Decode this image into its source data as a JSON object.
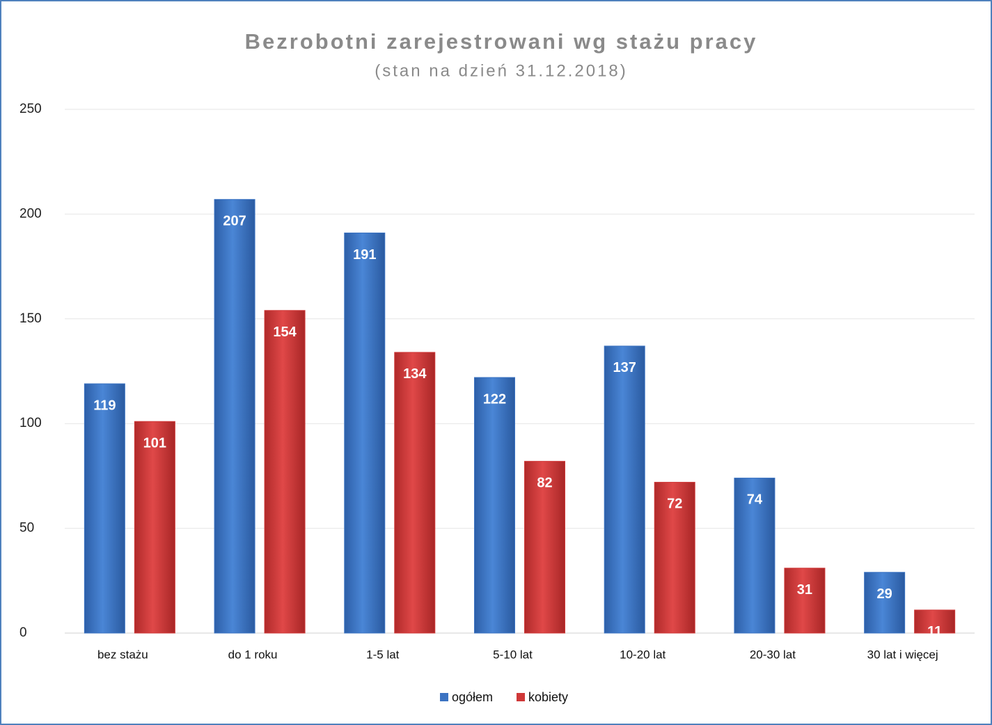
{
  "chart_data": {
    "type": "bar",
    "title": "Bezrobotni zarejestrowani wg stażu pracy",
    "subtitle": "(stan na dzień 31.12.2018)",
    "categories": [
      "bez stażu",
      "do 1 roku",
      "1-5 lat",
      "5-10 lat",
      "10-20 lat",
      "20-30 lat",
      "30 lat i więcej"
    ],
    "series": [
      {
        "name": "ogółem",
        "color": "#3b73c2",
        "values": [
          119,
          207,
          191,
          122,
          137,
          74,
          29
        ]
      },
      {
        "name": "kobiety",
        "color": "#cf3838",
        "values": [
          101,
          154,
          134,
          82,
          72,
          31,
          11
        ]
      }
    ],
    "ylim": [
      0,
      250
    ],
    "yticks": [
      0,
      50,
      100,
      150,
      200,
      250
    ],
    "grid": true,
    "legend": "bottom"
  }
}
